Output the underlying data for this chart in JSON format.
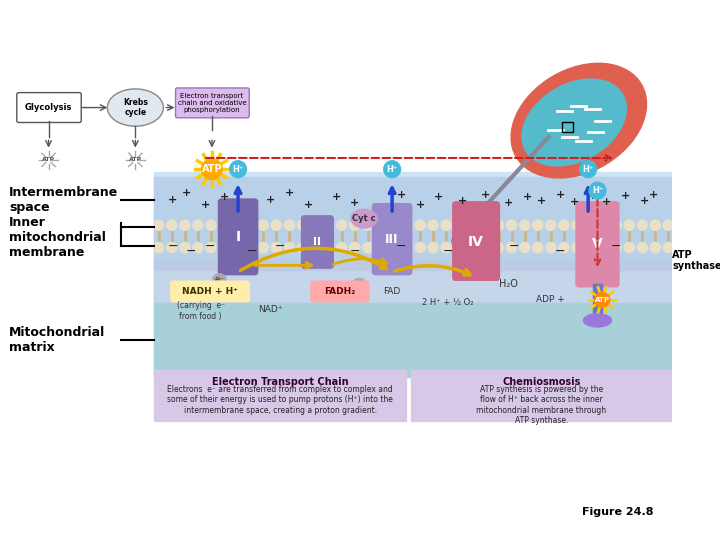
{
  "title": "",
  "bg_white": "#ffffff",
  "bg_light_blue": "#d8eaf5",
  "bg_membrane_upper": "#c8d8f0",
  "bg_matrix": "#b8dce8",
  "label_intermembrane": "Intermembrane\nspace",
  "label_inner_membrane": "Inner\nmitochondrial\nmembrane",
  "label_matrix": "Mitochondrial\nmatrix",
  "label_glycolysis": "Glycolysis",
  "label_krebs": "Krebs\ncycle",
  "label_etc": "Electron transport\nchain and oxidative\nphosphorylation",
  "label_nadh": "NADH + H⁺",
  "label_carrying": "(carrying  e⁻\nfrom food )",
  "label_nad": "NAD⁺",
  "label_fadh2": "FADH₂",
  "label_fad": "FAD",
  "label_atp_synth": "ATP\nsynthase",
  "label_adp": "ADP +",
  "label_atp_out": "ATP",
  "label_water": "H₂O",
  "label_o2": "2 H⁺ + ½ O₂",
  "label_etc_chain": "Electron Transport Chain",
  "label_chemiosmosis": "Chemiosmosis",
  "label_etc_text": "Electrons  e⁻ are transferred from complex to complex and\nsome of their energy is used to pump protons (H⁺) into the\nintermembrane space, creating a proton gradient.",
  "label_chemo_text": "ATP synthesis is powered by the\nflow of H⁺ back across the inner\nmitochondrial membrane through\nATP synthase.",
  "label_cytc": "Cyt c",
  "label_atp_large": "ATP",
  "label_figure": "Figure 24.8",
  "color_blue_dark": "#2244aa",
  "color_purple": "#9966aa",
  "color_pink": "#cc6688",
  "color_teal": "#44aaaa",
  "color_gold": "#ddaa00",
  "color_orange_atp": "#ffaa00",
  "color_label_box_nadh": "#ffeeaa",
  "color_label_box_fadh2": "#ffaaaa",
  "color_label_box_etc": "#ddaadd",
  "color_label_box_chemo": "#ddaadd",
  "color_cyan_ball": "#44bbdd",
  "color_dashed_red": "#cc2222",
  "color_arrow_gray": "#888899"
}
